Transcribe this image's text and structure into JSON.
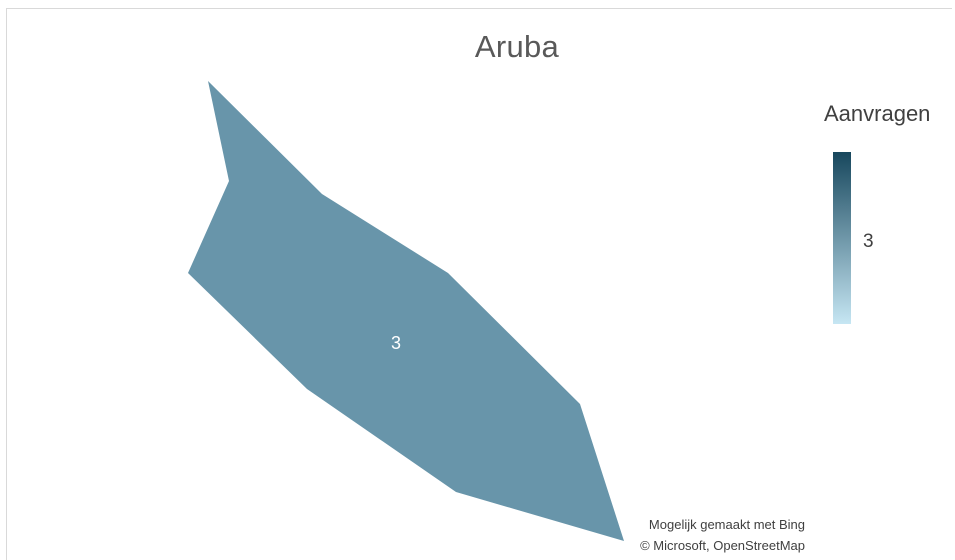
{
  "map": {
    "title": "Aruba",
    "region_name": "Aruba",
    "region_value": "3",
    "region_color": "#6895aa"
  },
  "legend": {
    "title": "Aanvragen",
    "value_label": "3",
    "gradient_top_color": "#17475d",
    "gradient_bottom_color": "#c6e6f3"
  },
  "attribution": {
    "line1": "Mogelijk gemaakt met Bing",
    "line2": "© Microsoft, OpenStreetMap"
  }
}
